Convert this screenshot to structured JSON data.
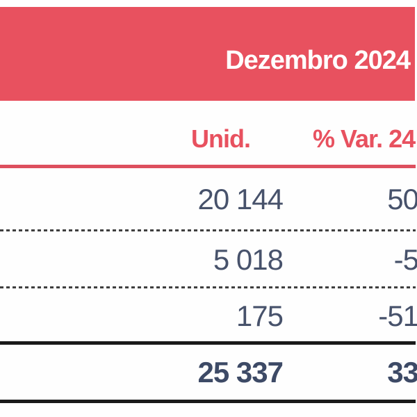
{
  "header": {
    "band_title": "Dezembro 2024"
  },
  "columns": [
    {
      "label": "Unid."
    },
    {
      "label": "% Var. 24"
    }
  ],
  "table": {
    "rows": [
      {
        "unid": "20 144",
        "var": "50"
      },
      {
        "unid": "5 018",
        "var": "-5"
      },
      {
        "unid": "175",
        "var": "-51"
      }
    ],
    "total": {
      "unid": "25 337",
      "var": "33"
    }
  },
  "colors": {
    "accent": "#e8515f",
    "accent_line": "#dd4f5e",
    "text": "#47526b",
    "text_total": "#3d4a66",
    "dash": "#3f3f3f",
    "black_line": "#1a1a1a"
  }
}
